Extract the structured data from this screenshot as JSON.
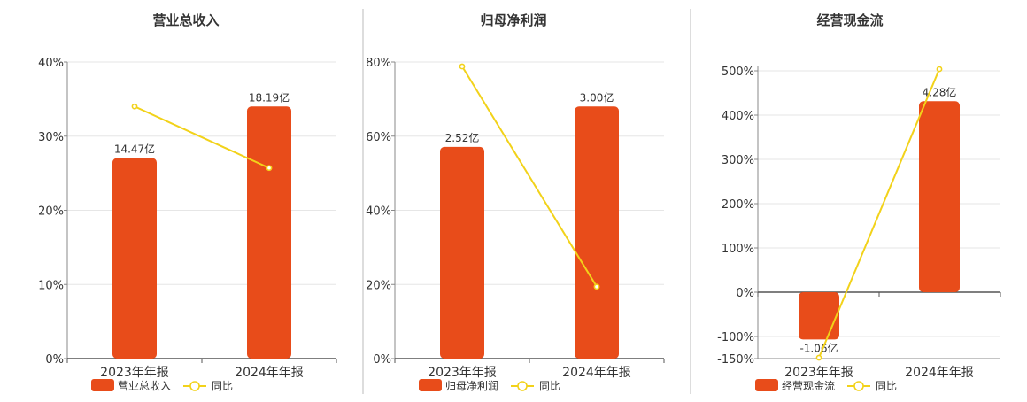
{
  "chart_data": [
    {
      "type": "bar",
      "title": "营业总收入",
      "categories": [
        "2023年年报",
        "2024年年报"
      ],
      "bar_series": {
        "name": "营业总收入",
        "values": [
          14.47,
          18.19
        ],
        "labels": [
          "14.47亿",
          "18.19亿"
        ],
        "color": "#E84C1A"
      },
      "line_series": {
        "name": "同比",
        "values": [
          34,
          25.7
        ],
        "color": "#F2D21A"
      },
      "ylim": [
        0,
        40
      ],
      "yticks": [
        "0%",
        "10%",
        "20%",
        "30%",
        "40%"
      ],
      "ytick_values": [
        0,
        10,
        20,
        30,
        40
      ],
      "bar_axis_max": 21.4,
      "grid": true,
      "legend": "bottom"
    },
    {
      "type": "bar",
      "title": "归母净利润",
      "categories": [
        "2023年年报",
        "2024年年报"
      ],
      "bar_series": {
        "name": "归母净利润",
        "values": [
          2.52,
          3.0
        ],
        "labels": [
          "2.52亿",
          "3.00亿"
        ],
        "color": "#E84C1A"
      },
      "line_series": {
        "name": "同比",
        "values": [
          78.8,
          19.4
        ],
        "color": "#F2D21A"
      },
      "ylim": [
        0,
        80
      ],
      "yticks": [
        "0%",
        "20%",
        "40%",
        "60%",
        "80%"
      ],
      "ytick_values": [
        0,
        20,
        40,
        60,
        80
      ],
      "bar_axis_max": 3.53,
      "grid": true,
      "legend": "bottom"
    },
    {
      "type": "bar",
      "title": "经营现金流",
      "categories": [
        "2023年年报",
        "2024年年报"
      ],
      "bar_series": {
        "name": "经营现金流",
        "values": [
          -1.06,
          4.28
        ],
        "labels": [
          "-1.06亿",
          "4.28亿"
        ],
        "color": "#E84C1A"
      },
      "line_series": {
        "name": "同比",
        "values": [
          -148,
          504
        ],
        "color": "#F2D21A"
      },
      "ylim": [
        -150,
        510
      ],
      "yticks": [
        "-150%",
        "-100%",
        "0%",
        "100%",
        "200%",
        "300%",
        "400%",
        "500%"
      ],
      "ytick_values": [
        -150,
        -100,
        0,
        100,
        200,
        300,
        400,
        500
      ],
      "bar_axis_max": 5.06,
      "grid": true,
      "legend": "bottom"
    }
  ]
}
